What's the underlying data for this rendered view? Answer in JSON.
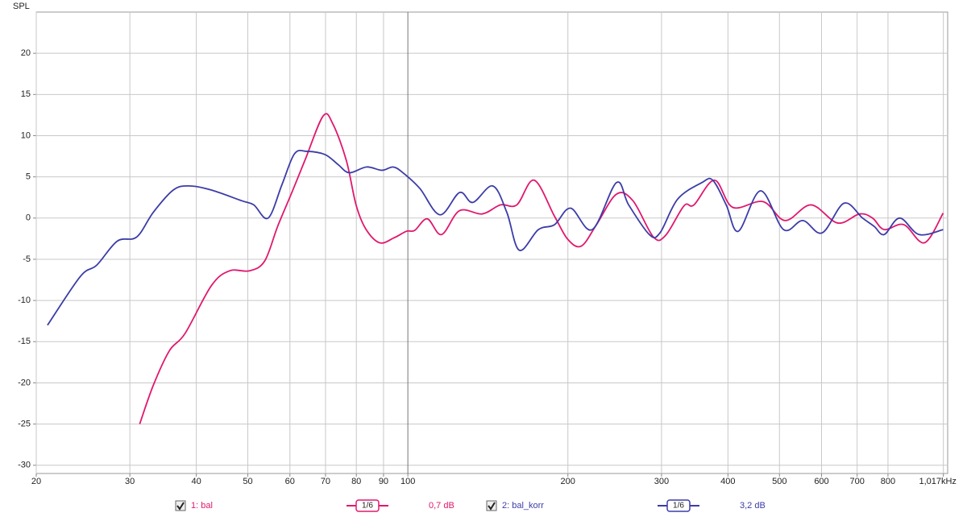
{
  "chart_data": {
    "type": "line",
    "y_label": "SPL",
    "log_x": true,
    "grid": true,
    "xlim": [
      20,
      1036
    ],
    "ylim": [
      -31,
      25
    ],
    "xticks": [
      20,
      30,
      40,
      50,
      60,
      70,
      80,
      90,
      100,
      200,
      300,
      400,
      500,
      600,
      700,
      800,
      {
        "value": 1017,
        "label": "1,017kHz"
      }
    ],
    "yticks": [
      -30,
      -25,
      -20,
      -15,
      -10,
      -5,
      0,
      5,
      10,
      15,
      20
    ],
    "series": [
      {
        "name": "1: bal",
        "color": "#e0186e",
        "smoothing": "1/6",
        "offset": "0,7 dB",
        "x": [
          31.3,
          33.2,
          35.6,
          38.1,
          42.7,
          46.2,
          50.4,
          53.8,
          56.9,
          60.5,
          64.2,
          69.3,
          72.3,
          76.6,
          79.9,
          83.3,
          88.5,
          94.2,
          99.4,
          103,
          108.8,
          115.7,
          125.1,
          138,
          149.4,
          160.3,
          172.8,
          188.8,
          200,
          212,
          226.4,
          246.8,
          265.1,
          289.7,
          305.4,
          330.8,
          345.3,
          377.4,
          408.4,
          465.7,
          512.4,
          573.2,
          643.3,
          707.1,
          748.3,
          787,
          856.7,
          936.5,
          1016
        ],
        "values": [
          -25.0,
          -20.3,
          -16.1,
          -14.0,
          -8.2,
          -6.4,
          -6.4,
          -5.2,
          -1.0,
          3.1,
          7.2,
          12.4,
          11.4,
          7.0,
          1.6,
          -1.3,
          -3.0,
          -2.4,
          -1.6,
          -1.5,
          -0.1,
          -2.0,
          0.9,
          0.5,
          1.6,
          1.6,
          4.6,
          0.2,
          -2.6,
          -3.4,
          -0.8,
          2.9,
          2.1,
          -2.3,
          -2.1,
          1.5,
          1.6,
          4.6,
          1.3,
          2.0,
          -0.3,
          1.6,
          -0.6,
          0.5,
          0.0,
          -1.4,
          -0.8,
          -3.0,
          0.6
        ]
      },
      {
        "name": "2: bal_korr",
        "color": "#3c3ca8",
        "smoothing": "1/6",
        "offset": "3,2 dB",
        "x": [
          21,
          24.2,
          26,
          28.4,
          30.9,
          33.2,
          36.2,
          38.8,
          42.7,
          48.7,
          51.3,
          54.6,
          58,
          61.2,
          64.6,
          69.9,
          73.9,
          77.6,
          83.6,
          89.4,
          93.8,
          97.9,
          105.3,
          114.9,
          125.1,
          132.5,
          144.4,
          153.5,
          162,
          176,
          188.8,
          202.4,
          222.2,
          246.8,
          260.2,
          284.6,
          298,
          321.7,
          357.2,
          374.5,
          397,
          418.5,
          460.8,
          508.9,
          553.2,
          601.5,
          661.2,
          716.7,
          753.4,
          787,
          841.6,
          915.3,
          1016
        ],
        "values": [
          -13.0,
          -7.1,
          -5.7,
          -2.8,
          -2.3,
          0.7,
          3.4,
          3.9,
          3.4,
          2.1,
          1.6,
          0.0,
          4.1,
          7.8,
          8.1,
          7.7,
          6.5,
          5.5,
          6.2,
          5.8,
          6.2,
          5.5,
          3.6,
          0.4,
          3.1,
          1.9,
          3.9,
          0.7,
          -3.9,
          -1.4,
          -0.8,
          1.2,
          -1.4,
          4.3,
          1.6,
          -2.0,
          -1.8,
          2.3,
          4.3,
          4.6,
          1.6,
          -1.6,
          3.3,
          -1.4,
          -0.3,
          -1.8,
          1.8,
          0.0,
          -1.0,
          -2.0,
          0.0,
          -2.0,
          -1.4
        ]
      }
    ]
  }
}
